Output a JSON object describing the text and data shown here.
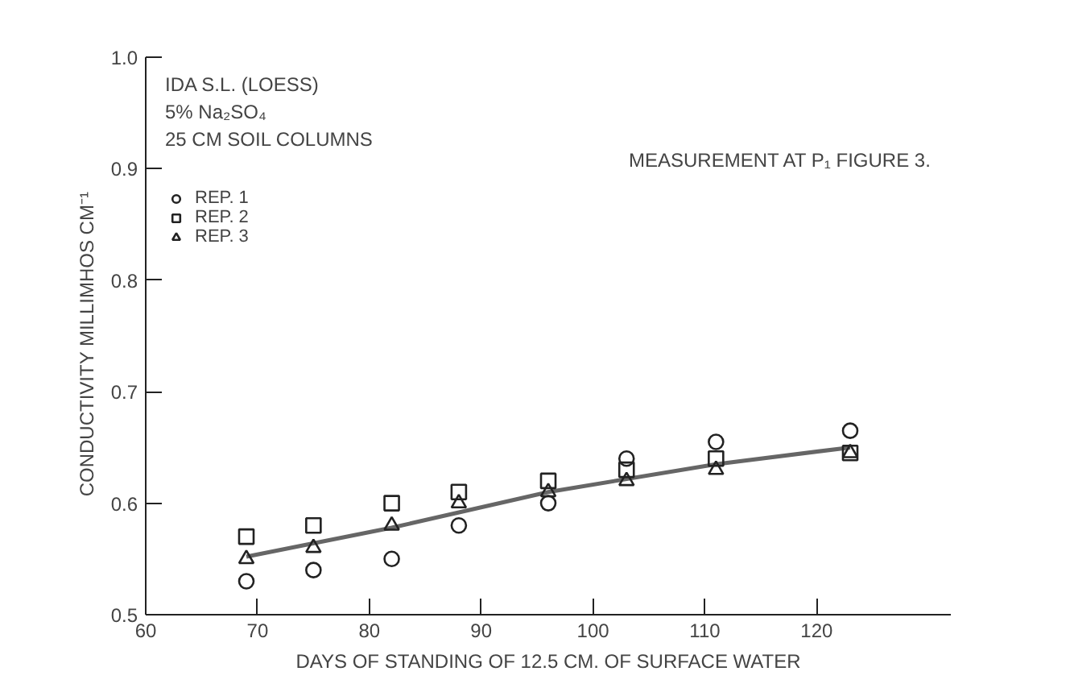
{
  "chart_data": {
    "type": "scatter",
    "xlabel": "DAYS OF STANDING OF 12.5 CM. OF SURFACE WATER",
    "ylabel": "CONDUCTIVITY   MILLIMHOS  CM⁻¹",
    "annotations": [
      "IDA S.L. (LOESS)",
      "5%  Na₂SO₄",
      "25 CM  SOIL COLUMNS",
      "MEASUREMENT AT P₁  FIGURE 3."
    ],
    "x": [
      69,
      75,
      82,
      88,
      96,
      103,
      111,
      123
    ],
    "series": [
      {
        "name": "REP. 1",
        "color": "#222222",
        "marker": "circle",
        "values": [
          0.53,
          0.54,
          0.55,
          0.58,
          0.6,
          0.64,
          0.655,
          0.665
        ]
      },
      {
        "name": "REP. 2",
        "color": "#222222",
        "marker": "square",
        "values": [
          0.57,
          0.58,
          0.6,
          0.61,
          0.62,
          0.63,
          0.64,
          0.645
        ]
      },
      {
        "name": "REP. 3",
        "color": "#222222",
        "marker": "triangle",
        "values": [
          0.55,
          0.56,
          0.58,
          0.6,
          0.61,
          0.62,
          0.63,
          0.645
        ]
      },
      {
        "type": "line",
        "color": "#666666",
        "x": [
          69,
          82,
          96,
          111,
          123
        ],
        "values": [
          0.552,
          0.578,
          0.61,
          0.635,
          0.65
        ]
      }
    ],
    "xlim": [
      60,
      132
    ],
    "ylim": [
      0.5,
      1.0
    ],
    "xticks": [
      60,
      70,
      80,
      90,
      100,
      110,
      120
    ],
    "yticks": [
      0.5,
      0.6,
      0.7,
      0.8,
      0.9,
      {
        "value": 1.0,
        "label": "1.0"
      }
    ],
    "legend": "top left",
    "grid": false
  }
}
